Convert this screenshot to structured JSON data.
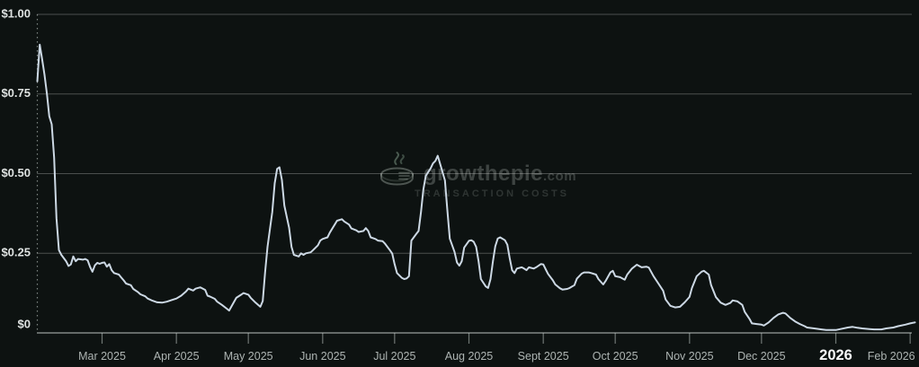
{
  "watermark": {
    "brand": "growthepie",
    "tld": ".com",
    "subtitle": "TRANSACTION COSTS"
  },
  "colors": {
    "line": "#ccd8e4",
    "grid": "rgba(255,255,255,0.26)",
    "axis": "rgba(226,232,230,0.55)",
    "background_glow": "#2e5428"
  },
  "chart_data": {
    "type": "line",
    "title": "Transaction Costs",
    "xlabel": "",
    "ylabel": "",
    "ylim": [
      0,
      1.0
    ],
    "x_range": [
      "2025-02-02",
      "2026-02-03"
    ],
    "grid": true,
    "legend": "none",
    "line_color": "#ccd8e4",
    "y_ticks": [
      {
        "label": "$1.00",
        "value": 1.0
      },
      {
        "label": "$0.75",
        "value": 0.75
      },
      {
        "label": "$0.50",
        "value": 0.5
      },
      {
        "label": "$0.25",
        "value": 0.25
      },
      {
        "label": "$0",
        "value": 0
      }
    ],
    "x_ticks": [
      {
        "label": "Mar 2025",
        "date": "2025-03-01",
        "bold": false
      },
      {
        "label": "Apr 2025",
        "date": "2025-04-01",
        "bold": false
      },
      {
        "label": "May 2025",
        "date": "2025-05-01",
        "bold": false
      },
      {
        "label": "Jun 2025",
        "date": "2025-06-01",
        "bold": false
      },
      {
        "label": "Jul 2025",
        "date": "2025-07-01",
        "bold": false
      },
      {
        "label": "Aug 2025",
        "date": "2025-08-01",
        "bold": false
      },
      {
        "label": "Sept 2025",
        "date": "2025-09-01",
        "bold": false
      },
      {
        "label": "Oct 2025",
        "date": "2025-10-01",
        "bold": false
      },
      {
        "label": "Nov 2025",
        "date": "2025-11-01",
        "bold": false
      },
      {
        "label": "Dec 2025",
        "date": "2025-12-01",
        "bold": false
      },
      {
        "label": "2026",
        "date": "2026-01-01",
        "bold": true
      },
      {
        "label": "Feb 2026",
        "date": "2026-02-01",
        "bold": false
      }
    ],
    "points": [
      [
        "2025-02-02",
        0.79
      ],
      [
        "2025-02-03",
        0.905
      ],
      [
        "2025-02-04",
        0.86
      ],
      [
        "2025-02-05",
        0.81
      ],
      [
        "2025-02-06",
        0.75
      ],
      [
        "2025-02-07",
        0.68
      ],
      [
        "2025-02-08",
        0.655
      ],
      [
        "2025-02-09",
        0.55
      ],
      [
        "2025-02-10",
        0.36
      ],
      [
        "2025-02-11",
        0.26
      ],
      [
        "2025-02-12",
        0.245
      ],
      [
        "2025-02-14",
        0.225
      ],
      [
        "2025-02-15",
        0.21
      ],
      [
        "2025-02-16",
        0.215
      ],
      [
        "2025-02-17",
        0.24
      ],
      [
        "2025-02-18",
        0.225
      ],
      [
        "2025-02-19",
        0.232
      ],
      [
        "2025-02-21",
        0.23
      ],
      [
        "2025-02-22",
        0.232
      ],
      [
        "2025-02-23",
        0.228
      ],
      [
        "2025-02-24",
        0.207
      ],
      [
        "2025-02-25",
        0.192
      ],
      [
        "2025-02-26",
        0.212
      ],
      [
        "2025-02-27",
        0.22
      ],
      [
        "2025-02-28",
        0.217
      ],
      [
        "2025-03-01",
        0.22
      ],
      [
        "2025-03-02",
        0.221
      ],
      [
        "2025-03-03",
        0.208
      ],
      [
        "2025-03-04",
        0.216
      ],
      [
        "2025-03-05",
        0.197
      ],
      [
        "2025-03-06",
        0.188
      ],
      [
        "2025-03-08",
        0.183
      ],
      [
        "2025-03-09",
        0.174
      ],
      [
        "2025-03-10",
        0.165
      ],
      [
        "2025-03-11",
        0.155
      ],
      [
        "2025-03-13",
        0.15
      ],
      [
        "2025-03-14",
        0.138
      ],
      [
        "2025-03-16",
        0.128
      ],
      [
        "2025-03-17",
        0.121
      ],
      [
        "2025-03-19",
        0.115
      ],
      [
        "2025-03-20",
        0.108
      ],
      [
        "2025-03-22",
        0.101
      ],
      [
        "2025-03-24",
        0.096
      ],
      [
        "2025-03-26",
        0.095
      ],
      [
        "2025-03-28",
        0.098
      ],
      [
        "2025-03-30",
        0.103
      ],
      [
        "2025-04-01",
        0.108
      ],
      [
        "2025-04-03",
        0.117
      ],
      [
        "2025-04-05",
        0.13
      ],
      [
        "2025-04-06",
        0.139
      ],
      [
        "2025-04-08",
        0.133
      ],
      [
        "2025-04-09",
        0.139
      ],
      [
        "2025-04-11",
        0.143
      ],
      [
        "2025-04-13",
        0.135
      ],
      [
        "2025-04-14",
        0.117
      ],
      [
        "2025-04-15",
        0.114
      ],
      [
        "2025-04-17",
        0.107
      ],
      [
        "2025-04-18",
        0.098
      ],
      [
        "2025-04-20",
        0.088
      ],
      [
        "2025-04-22",
        0.076
      ],
      [
        "2025-04-23",
        0.07
      ],
      [
        "2025-04-26",
        0.11
      ],
      [
        "2025-04-28",
        0.12
      ],
      [
        "2025-04-29",
        0.125
      ],
      [
        "2025-05-01",
        0.12
      ],
      [
        "2025-05-02",
        0.11
      ],
      [
        "2025-05-04",
        0.095
      ],
      [
        "2025-05-06",
        0.082
      ],
      [
        "2025-05-07",
        0.1
      ],
      [
        "2025-05-08",
        0.19
      ],
      [
        "2025-05-09",
        0.27
      ],
      [
        "2025-05-11",
        0.38
      ],
      [
        "2025-05-12",
        0.47
      ],
      [
        "2025-05-13",
        0.515
      ],
      [
        "2025-05-14",
        0.52
      ],
      [
        "2025-05-15",
        0.48
      ],
      [
        "2025-05-16",
        0.4
      ],
      [
        "2025-05-18",
        0.33
      ],
      [
        "2025-05-19",
        0.27
      ],
      [
        "2025-05-20",
        0.245
      ],
      [
        "2025-05-22",
        0.24
      ],
      [
        "2025-05-23",
        0.25
      ],
      [
        "2025-05-24",
        0.245
      ],
      [
        "2025-05-25",
        0.25
      ],
      [
        "2025-05-27",
        0.253
      ],
      [
        "2025-05-28",
        0.26
      ],
      [
        "2025-05-30",
        0.275
      ],
      [
        "2025-05-31",
        0.29
      ],
      [
        "2025-06-01",
        0.295
      ],
      [
        "2025-06-03",
        0.3
      ],
      [
        "2025-06-04",
        0.315
      ],
      [
        "2025-06-06",
        0.34
      ],
      [
        "2025-06-07",
        0.352
      ],
      [
        "2025-06-09",
        0.357
      ],
      [
        "2025-06-10",
        0.35
      ],
      [
        "2025-06-12",
        0.34
      ],
      [
        "2025-06-13",
        0.328
      ],
      [
        "2025-06-15",
        0.322
      ],
      [
        "2025-06-16",
        0.317
      ],
      [
        "2025-06-18",
        0.32
      ],
      [
        "2025-06-19",
        0.329
      ],
      [
        "2025-06-20",
        0.32
      ],
      [
        "2025-06-21",
        0.3
      ],
      [
        "2025-06-23",
        0.295
      ],
      [
        "2025-06-24",
        0.29
      ],
      [
        "2025-06-26",
        0.288
      ],
      [
        "2025-06-27",
        0.28
      ],
      [
        "2025-06-29",
        0.26
      ],
      [
        "2025-06-30",
        0.249
      ],
      [
        "2025-07-01",
        0.216
      ],
      [
        "2025-07-02",
        0.188
      ],
      [
        "2025-07-04",
        0.173
      ],
      [
        "2025-07-05",
        0.169
      ],
      [
        "2025-07-06",
        0.171
      ],
      [
        "2025-07-07",
        0.178
      ],
      [
        "2025-07-08",
        0.29
      ],
      [
        "2025-07-10",
        0.31
      ],
      [
        "2025-07-11",
        0.32
      ],
      [
        "2025-07-12",
        0.38
      ],
      [
        "2025-07-13",
        0.45
      ],
      [
        "2025-07-14",
        0.493
      ],
      [
        "2025-07-16",
        0.516
      ],
      [
        "2025-07-17",
        0.532
      ],
      [
        "2025-07-18",
        0.54
      ],
      [
        "2025-07-19",
        0.556
      ],
      [
        "2025-07-20",
        0.53
      ],
      [
        "2025-07-22",
        0.479
      ],
      [
        "2025-07-23",
        0.385
      ],
      [
        "2025-07-24",
        0.296
      ],
      [
        "2025-07-26",
        0.254
      ],
      [
        "2025-07-27",
        0.221
      ],
      [
        "2025-07-28",
        0.211
      ],
      [
        "2025-07-29",
        0.225
      ],
      [
        "2025-07-30",
        0.268
      ],
      [
        "2025-08-01",
        0.289
      ],
      [
        "2025-08-02",
        0.291
      ],
      [
        "2025-08-03",
        0.286
      ],
      [
        "2025-08-04",
        0.27
      ],
      [
        "2025-08-05",
        0.225
      ],
      [
        "2025-08-06",
        0.169
      ],
      [
        "2025-08-08",
        0.146
      ],
      [
        "2025-08-09",
        0.141
      ],
      [
        "2025-08-10",
        0.169
      ],
      [
        "2025-08-11",
        0.225
      ],
      [
        "2025-08-12",
        0.272
      ],
      [
        "2025-08-13",
        0.296
      ],
      [
        "2025-08-14",
        0.3
      ],
      [
        "2025-08-16",
        0.291
      ],
      [
        "2025-08-17",
        0.277
      ],
      [
        "2025-08-18",
        0.235
      ],
      [
        "2025-08-19",
        0.197
      ],
      [
        "2025-08-20",
        0.188
      ],
      [
        "2025-08-21",
        0.202
      ],
      [
        "2025-08-23",
        0.206
      ],
      [
        "2025-08-24",
        0.202
      ],
      [
        "2025-08-25",
        0.197
      ],
      [
        "2025-08-26",
        0.206
      ],
      [
        "2025-08-28",
        0.202
      ],
      [
        "2025-08-29",
        0.206
      ],
      [
        "2025-08-31",
        0.216
      ],
      [
        "2025-09-01",
        0.215
      ],
      [
        "2025-09-02",
        0.2
      ],
      [
        "2025-09-03",
        0.185
      ],
      [
        "2025-09-05",
        0.165
      ],
      [
        "2025-09-06",
        0.152
      ],
      [
        "2025-09-08",
        0.14
      ],
      [
        "2025-09-09",
        0.136
      ],
      [
        "2025-09-11",
        0.138
      ],
      [
        "2025-09-12",
        0.141
      ],
      [
        "2025-09-14",
        0.15
      ],
      [
        "2025-09-15",
        0.17
      ],
      [
        "2025-09-17",
        0.186
      ],
      [
        "2025-09-18",
        0.19
      ],
      [
        "2025-09-20",
        0.19
      ],
      [
        "2025-09-21",
        0.188
      ],
      [
        "2025-09-23",
        0.183
      ],
      [
        "2025-09-24",
        0.169
      ],
      [
        "2025-09-26",
        0.152
      ],
      [
        "2025-09-27",
        0.163
      ],
      [
        "2025-09-29",
        0.19
      ],
      [
        "2025-09-30",
        0.195
      ],
      [
        "2025-10-01",
        0.178
      ],
      [
        "2025-10-03",
        0.175
      ],
      [
        "2025-10-05",
        0.167
      ],
      [
        "2025-10-06",
        0.183
      ],
      [
        "2025-10-08",
        0.202
      ],
      [
        "2025-10-10",
        0.214
      ],
      [
        "2025-10-12",
        0.206
      ],
      [
        "2025-10-14",
        0.208
      ],
      [
        "2025-10-15",
        0.205
      ],
      [
        "2025-10-17",
        0.178
      ],
      [
        "2025-10-19",
        0.155
      ],
      [
        "2025-10-21",
        0.132
      ],
      [
        "2025-10-22",
        0.105
      ],
      [
        "2025-10-24",
        0.085
      ],
      [
        "2025-10-26",
        0.08
      ],
      [
        "2025-10-28",
        0.082
      ],
      [
        "2025-10-30",
        0.096
      ],
      [
        "2025-11-01",
        0.113
      ],
      [
        "2025-11-02",
        0.141
      ],
      [
        "2025-11-04",
        0.178
      ],
      [
        "2025-11-06",
        0.192
      ],
      [
        "2025-11-07",
        0.195
      ],
      [
        "2025-11-09",
        0.183
      ],
      [
        "2025-11-10",
        0.15
      ],
      [
        "2025-11-12",
        0.112
      ],
      [
        "2025-11-14",
        0.095
      ],
      [
        "2025-11-16",
        0.088
      ],
      [
        "2025-11-18",
        0.094
      ],
      [
        "2025-11-19",
        0.102
      ],
      [
        "2025-11-21",
        0.099
      ],
      [
        "2025-11-23",
        0.088
      ],
      [
        "2025-11-24",
        0.066
      ],
      [
        "2025-11-26",
        0.044
      ],
      [
        "2025-11-27",
        0.03
      ],
      [
        "2025-11-29",
        0.028
      ],
      [
        "2025-12-01",
        0.026
      ],
      [
        "2025-12-02",
        0.023
      ],
      [
        "2025-12-04",
        0.033
      ],
      [
        "2025-12-06",
        0.047
      ],
      [
        "2025-12-08",
        0.058
      ],
      [
        "2025-12-10",
        0.063
      ],
      [
        "2025-12-11",
        0.061
      ],
      [
        "2025-12-13",
        0.047
      ],
      [
        "2025-12-15",
        0.036
      ],
      [
        "2025-12-17",
        0.028
      ],
      [
        "2025-12-19",
        0.021
      ],
      [
        "2025-12-20",
        0.017
      ],
      [
        "2025-12-23",
        0.014
      ],
      [
        "2025-12-26",
        0.011
      ],
      [
        "2025-12-28",
        0.009
      ],
      [
        "2026-01-01",
        0.009
      ],
      [
        "2026-01-03",
        0.012
      ],
      [
        "2026-01-06",
        0.017
      ],
      [
        "2026-01-08",
        0.019
      ],
      [
        "2026-01-10",
        0.016
      ],
      [
        "2026-01-12",
        0.014
      ],
      [
        "2026-01-15",
        0.012
      ],
      [
        "2026-01-17",
        0.011
      ],
      [
        "2026-01-20",
        0.011
      ],
      [
        "2026-01-22",
        0.014
      ],
      [
        "2026-01-25",
        0.017
      ],
      [
        "2026-01-27",
        0.021
      ],
      [
        "2026-01-30",
        0.026
      ],
      [
        "2026-02-01",
        0.03
      ],
      [
        "2026-02-03",
        0.033
      ]
    ]
  }
}
